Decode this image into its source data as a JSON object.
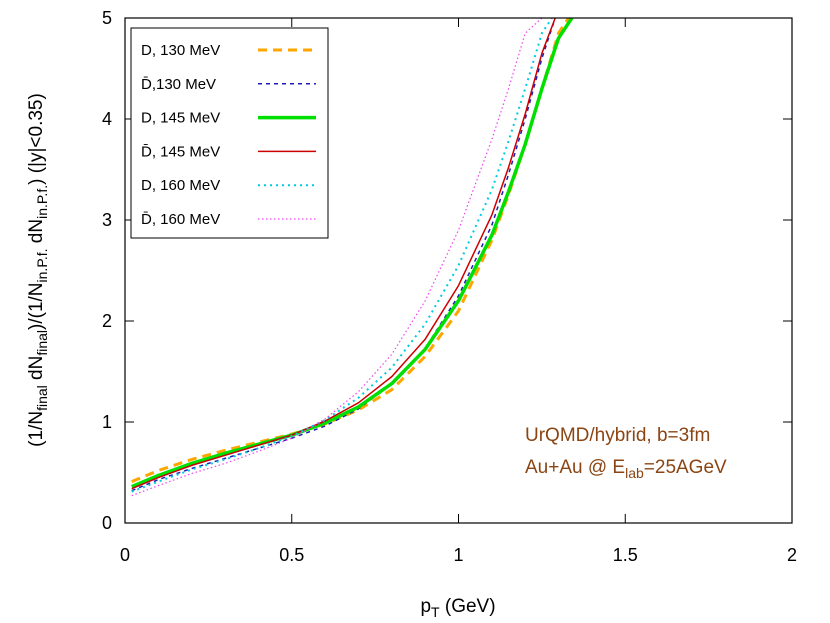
{
  "chart_data": {
    "type": "line",
    "title": "",
    "xlabel": {
      "main": "p",
      "sub": "T",
      "rest": " (GeV)"
    },
    "ylabel": {
      "parts": [
        {
          "t": "(1/N",
          "s": false
        },
        {
          "t": "final",
          "s": true
        },
        {
          "t": " dN",
          "s": false
        },
        {
          "t": "final",
          "s": true
        },
        {
          "t": ")/(1/N",
          "s": false
        },
        {
          "t": "in.P.f.",
          "s": true
        },
        {
          "t": " dN",
          "s": false
        },
        {
          "t": "in.P.f.",
          "s": true
        },
        {
          "t": ") (|y|<0.35)",
          "s": false
        }
      ]
    },
    "xlim": [
      0,
      2
    ],
    "ylim": [
      0,
      5
    ],
    "xticks": [
      0,
      0.5,
      1,
      1.5,
      2
    ],
    "xtick_labels": [
      "0",
      "0.5",
      "1",
      "1.5",
      "2"
    ],
    "yticks": [
      0,
      1,
      2,
      3,
      4,
      5
    ],
    "ytick_labels": [
      "0",
      "1",
      "2",
      "3",
      "4",
      "5"
    ],
    "legend_position": "top-left",
    "annotation": {
      "line1": "UrQMD/hybrid, b=3fm",
      "line2_pre": "Au+Au @ E",
      "line2_sub": "lab",
      "line2_post": "=25AGeV"
    },
    "series": [
      {
        "name": "D, 130 MeV",
        "color": "#ffa500",
        "width": 3,
        "dash": "9,6",
        "x": [
          0.02,
          0.1,
          0.2,
          0.3,
          0.4,
          0.5,
          0.6,
          0.7,
          0.8,
          0.9,
          1.0,
          1.1,
          1.15,
          1.2,
          1.25,
          1.3,
          1.33
        ],
        "y": [
          0.41,
          0.52,
          0.63,
          0.72,
          0.8,
          0.88,
          0.98,
          1.12,
          1.32,
          1.65,
          2.1,
          2.8,
          3.25,
          3.75,
          4.3,
          4.85,
          5.0
        ]
      },
      {
        "name": "D̄,130 MeV",
        "color": "#1e1eb4",
        "width": 1.5,
        "dash": "4,4",
        "x": [
          0.02,
          0.1,
          0.2,
          0.3,
          0.4,
          0.5,
          0.6,
          0.7,
          0.8,
          0.9,
          1.0,
          1.1,
          1.15,
          1.2,
          1.25,
          1.29
        ],
        "y": [
          0.32,
          0.43,
          0.54,
          0.64,
          0.74,
          0.84,
          0.96,
          1.13,
          1.38,
          1.73,
          2.25,
          2.95,
          3.45,
          4.0,
          4.6,
          5.0
        ]
      },
      {
        "name": "D, 145 MeV",
        "color": "#00e000",
        "width": 3.5,
        "dash": "",
        "x": [
          0.02,
          0.1,
          0.2,
          0.3,
          0.4,
          0.5,
          0.6,
          0.7,
          0.8,
          0.9,
          1.0,
          1.1,
          1.15,
          1.2,
          1.25,
          1.3,
          1.34
        ],
        "y": [
          0.36,
          0.47,
          0.59,
          0.69,
          0.78,
          0.87,
          0.99,
          1.15,
          1.38,
          1.72,
          2.2,
          2.85,
          3.28,
          3.75,
          4.3,
          4.8,
          5.0
        ]
      },
      {
        "name": "D̄, 145 MeV",
        "color": "#cc0000",
        "width": 1.5,
        "dash": "",
        "x": [
          0.02,
          0.1,
          0.2,
          0.3,
          0.4,
          0.5,
          0.6,
          0.7,
          0.8,
          0.9,
          1.0,
          1.1,
          1.15,
          1.2,
          1.25,
          1.29
        ],
        "y": [
          0.34,
          0.45,
          0.57,
          0.67,
          0.77,
          0.87,
          1.01,
          1.19,
          1.45,
          1.82,
          2.35,
          3.05,
          3.52,
          4.05,
          4.65,
          5.0
        ]
      },
      {
        "name": "D, 160 MeV",
        "color": "#00ccdd",
        "width": 2,
        "dash": "2,4",
        "x": [
          0.02,
          0.1,
          0.2,
          0.3,
          0.4,
          0.5,
          0.6,
          0.7,
          0.8,
          0.9,
          1.0,
          1.1,
          1.15,
          1.2,
          1.25,
          1.28
        ],
        "y": [
          0.31,
          0.41,
          0.53,
          0.63,
          0.74,
          0.86,
          1.02,
          1.24,
          1.54,
          1.97,
          2.55,
          3.3,
          3.78,
          4.3,
          4.85,
          5.0
        ]
      },
      {
        "name": "D̄, 160 MeV",
        "color": "#ee44ee",
        "width": 1.2,
        "dash": "1.5,2.5",
        "x": [
          0.02,
          0.1,
          0.2,
          0.3,
          0.4,
          0.5,
          0.6,
          0.7,
          0.8,
          0.9,
          1.0,
          1.1,
          1.15,
          1.2,
          1.25
        ],
        "y": [
          0.27,
          0.37,
          0.49,
          0.59,
          0.71,
          0.84,
          1.03,
          1.3,
          1.67,
          2.2,
          2.9,
          3.8,
          4.3,
          4.85,
          5.0
        ]
      }
    ]
  }
}
